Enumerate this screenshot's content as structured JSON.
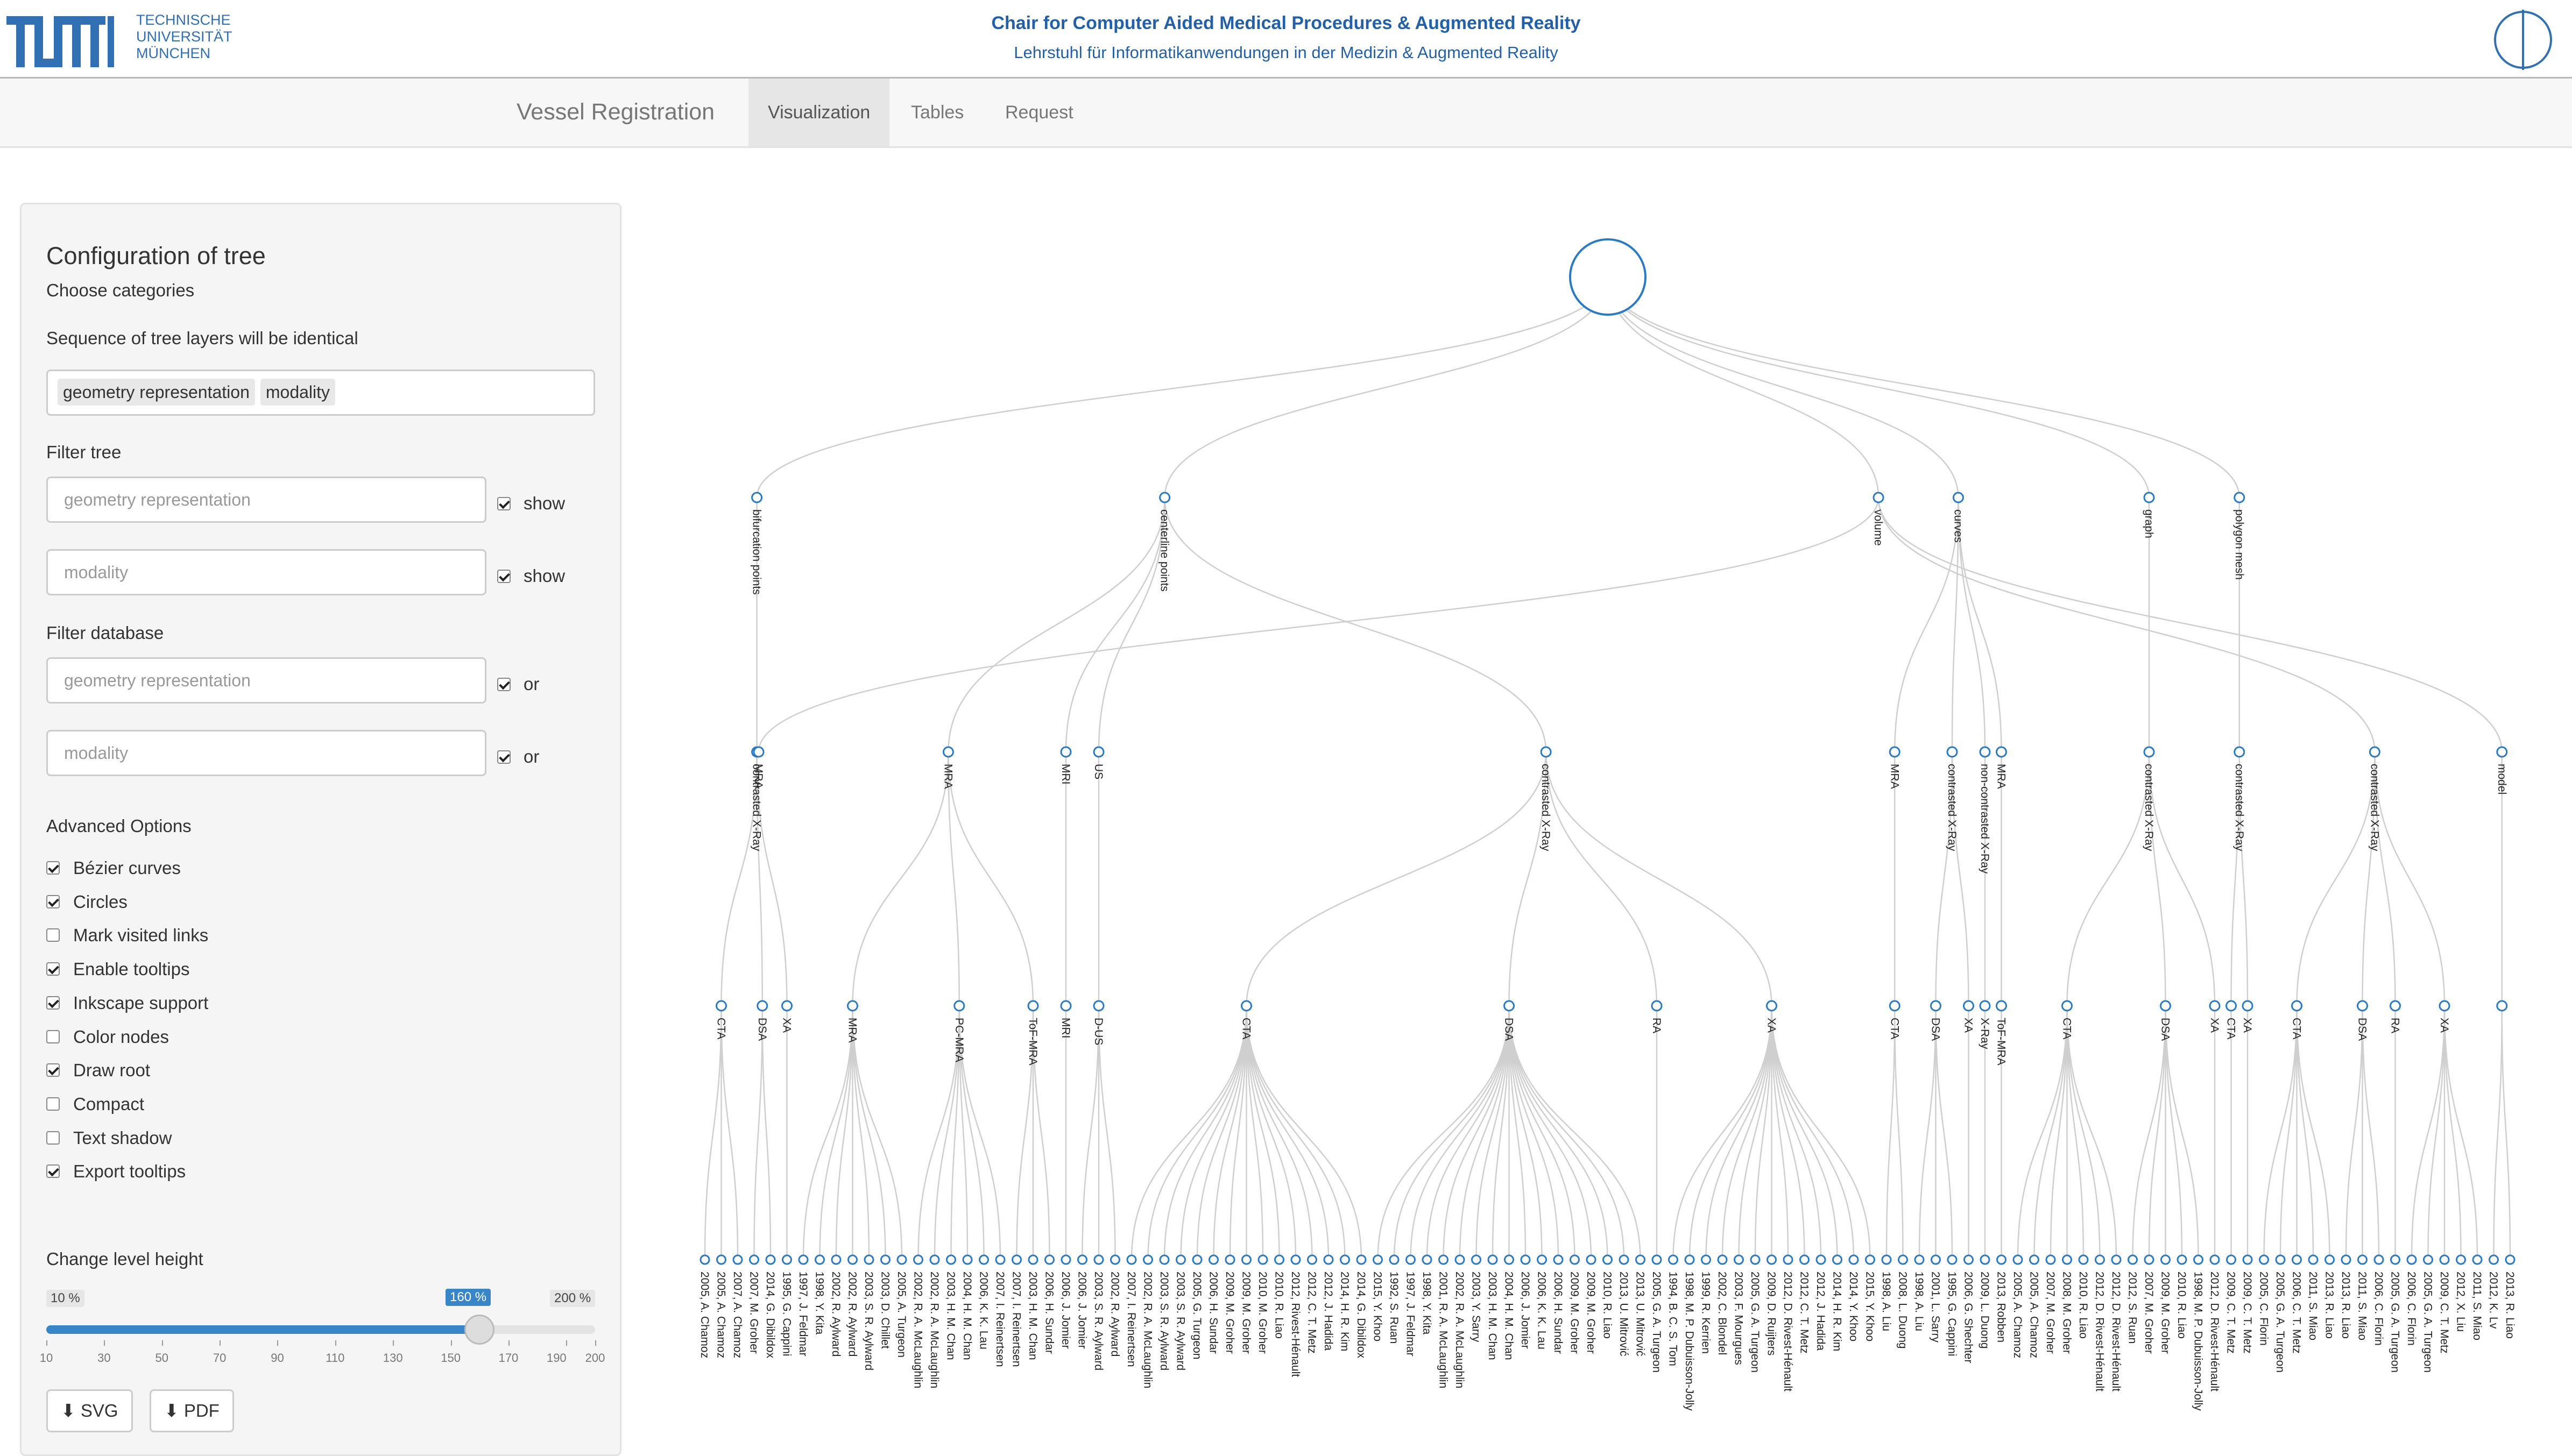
{
  "header": {
    "logo_text": "TUM",
    "university": [
      "TECHNISCHE",
      "UNIVERSITÄT",
      "MÜNCHEN"
    ],
    "chair_title": "Chair for Computer Aided Medical Procedures & Augmented Reality",
    "chair_subtitle": "Lehrstuhl für Informatikanwendungen in der Medizin & Augmented Reality"
  },
  "nav": {
    "brand": "Vessel Registration",
    "tabs": [
      {
        "label": "Visualization",
        "active": true
      },
      {
        "label": "Tables"
      },
      {
        "label": "Request"
      }
    ]
  },
  "panel": {
    "title": "Configuration of tree",
    "choose_label": "Choose categories",
    "sequence_label": "Sequence of tree layers will be identical",
    "selected_tags": [
      "geometry representation",
      "modality"
    ],
    "filter_tree_label": "Filter tree",
    "filter_tree": [
      {
        "placeholder": "geometry representation",
        "checked": true,
        "check_label": "show"
      },
      {
        "placeholder": "modality",
        "checked": true,
        "check_label": "show"
      }
    ],
    "filter_db_label": "Filter database",
    "filter_db": [
      {
        "placeholder": "geometry representation",
        "checked": true,
        "check_label": "or"
      },
      {
        "placeholder": "modality",
        "checked": true,
        "check_label": "or"
      }
    ],
    "advanced_label": "Advanced Options",
    "options": [
      {
        "label": "Bézier curves",
        "checked": true
      },
      {
        "label": "Circles",
        "checked": true
      },
      {
        "label": "Mark visited links",
        "checked": false
      },
      {
        "label": "Enable tooltips",
        "checked": true
      },
      {
        "label": "Inkscape support",
        "checked": true
      },
      {
        "label": "Color nodes",
        "checked": false
      },
      {
        "label": "Draw root",
        "checked": true
      },
      {
        "label": "Compact",
        "checked": false
      },
      {
        "label": "Text shadow",
        "checked": false
      },
      {
        "label": "Export tooltips",
        "checked": true
      }
    ],
    "level_height_label": "Change level height",
    "slider": {
      "min_label": "10 %",
      "max_label": "200 %",
      "value_label": "160 %",
      "min": 10,
      "max": 200,
      "value": 160,
      "ticks": [
        "10",
        "30",
        "50",
        "70",
        "90",
        "110",
        "130",
        "150",
        "170",
        "190",
        "200"
      ]
    },
    "buttons": {
      "svg": "SVG",
      "pdf": "PDF"
    }
  },
  "tree": {
    "children": [
      {
        "label": "bifurcation points",
        "children": [
          {
            "label": "contrasted X-Ray",
            "children": [
              {
                "label": "CTA",
                "leaves": [
                  "2005, A. Chamoz",
                  "2005, A. Chamoz",
                  "2007, A. Chamoz"
                ]
              },
              {
                "label": "DSA",
                "leaves": [
                  "2007, M. Groher",
                  "2014, G. Dibildox"
                ]
              },
              {
                "label": "XA",
                "leaves": [
                  "1995, G. Cappini"
                ]
              }
            ]
          }
        ]
      },
      {
        "label": "centerline points",
        "children": [
          {
            "label": "MRA",
            "children": [
              {
                "label": "MRA",
                "leaves": [
                  "1997, J. Feldmar",
                  "1998, Y. Kita",
                  "2002, R. Aylward",
                  "2002, R. Aylward",
                  "2003, S. R. Aylward",
                  "2003, D. Chillet",
                  "2005, A. Turgeon"
                ]
              },
              {
                "label": "PC-MRA",
                "leaves": [
                  "2002, R. A. McLaughlin",
                  "2002, R. A. McLaughlin",
                  "2003, H. M. Chan",
                  "2004, H. M. Chan",
                  "2006, K. K. Lau",
                  "2007, I. Reinertsen"
                ]
              },
              {
                "label": "ToF-MRA",
                "leaves": [
                  "2007, I. Reinertsen",
                  "2003, H. M. Chan",
                  "2006, H. Sundar"
                ]
              }
            ]
          },
          {
            "label": "MRI",
            "children": [
              {
                "label": "MRI",
                "leaves": [
                  "2006, J. Jomier"
                ]
              }
            ]
          },
          {
            "label": "US",
            "children": [
              {
                "label": "D-US",
                "leaves": [
                  "2006, J. Jomier",
                  "2003, S. R. Aylward",
                  "2002, R. Aylward"
                ]
              }
            ]
          },
          {
            "label": "contrasted X-Ray",
            "children": [
              {
                "label": "CTA",
                "leaves": [
                  "2007, I. Reinertsen",
                  "2002, R. A. McLaughlin",
                  "2003, S. R. Aylward",
                  "2003, S. R. Aylward",
                  "2005, G. Turgeon",
                  "2006, H. Sundar",
                  "2009, M. Groher",
                  "2009, M. Groher",
                  "2010, M. Groher",
                  "2010, R. Liao",
                  "2012, Rivest-Hénault",
                  "2012, C. T. Metz",
                  "2012, J. Hadida",
                  "2014, H. R. Kim",
                  "2014, G. Dibildox"
                ]
              },
              {
                "label": "DSA",
                "leaves": [
                  "2015, Y. Khoo",
                  "1992, S. Ruan",
                  "1997, J. Feldmar",
                  "1998, Y. Kita",
                  "2001, R. A. McLaughlin",
                  "2002, R. A. McLaughlin",
                  "2003, Y. Sarry",
                  "2003, H. M. Chan",
                  "2004, H. M. Chan",
                  "2006, J. Jomier",
                  "2006, K. K. Lau",
                  "2006, H. Sundar",
                  "2009, M. Groher",
                  "2009, M. Groher",
                  "2010, R. Liao",
                  "2013, U. Mitrović",
                  "2013, U. Mitrović"
                ]
              },
              {
                "label": "RA",
                "leaves": [
                  "2005, G. A. Turgeon"
                ]
              },
              {
                "label": "XA",
                "leaves": [
                  "1994, B. C. S. Tom",
                  "1998, M. P. Dubuisson-Jolly",
                  "1999, R. Kerrien",
                  "2002, C. Blondel",
                  "2003, F. Mourgues",
                  "2005, G. A. Turgeon",
                  "2009, D. Ruijters",
                  "2012, D. Rivest-Hénault",
                  "2012, C. T. Metz",
                  "2012, J. Hadida",
                  "2014, H. R. Kim",
                  "2014, Y. Khoo",
                  "2015, Y. Khoo"
                ]
              }
            ]
          }
        ]
      },
      {
        "label": "curves",
        "children": [
          {
            "label": "MRA",
            "children": [
              {
                "label": "CTA",
                "leaves": [
                  "1998, A. Liu",
                  "2008, L. Duong"
                ]
              }
            ]
          },
          {
            "label": "contrasted X-Ray",
            "children": [
              {
                "label": "DSA",
                "leaves": [
                  "1998, A. Liu",
                  "2001, L. Sarry",
                  "1995, G. Cappini"
                ]
              },
              {
                "label": "XA",
                "leaves": [
                  "2006, G. Shechter"
                ]
              }
            ]
          },
          {
            "label": "non-contrasted X-Ray",
            "children": [
              {
                "label": "X-Ray",
                "leaves": [
                  "2009, L. Duong"
                ]
              }
            ]
          },
          {
            "label": "MRA",
            "children": [
              {
                "label": "ToF-MRA",
                "leaves": [
                  "2013, Robben"
                ]
              }
            ]
          }
        ]
      },
      {
        "label": "graph",
        "children": [
          {
            "label": "contrasted X-Ray",
            "children": [
              {
                "label": "CTA",
                "leaves": [
                  "2005, A. Chamoz",
                  "2005, A. Chamoz",
                  "2007, M. Groher",
                  "2008, M. Groher",
                  "2010, R. Liao",
                  "2012, D. Rivest-Hénault",
                  "2012, D. Rivest-Hénault"
                ]
              },
              {
                "label": "DSA",
                "leaves": [
                  "2012, S. Ruan",
                  "2007, M. Groher",
                  "2009, M. Groher",
                  "2010, R. Liao",
                  "1998, M. P. Dubuisson-Jolly"
                ]
              },
              {
                "label": "XA",
                "leaves": [
                  "2012, D. Rivest-Hénault"
                ]
              }
            ]
          }
        ]
      },
      {
        "label": "polygon mesh",
        "children": [
          {
            "label": "contrasted X-Ray",
            "children": [
              {
                "label": "CTA",
                "leaves": [
                  "2009, C. T. Metz"
                ]
              },
              {
                "label": "XA",
                "leaves": [
                  "2009, C. T. Metz"
                ]
              }
            ]
          }
        ]
      },
      {
        "label": "volume",
        "children": [
          {
            "label": "MRA",
            "children": []
          },
          {
            "label": "contrasted X-Ray",
            "children": [
              {
                "label": "CTA",
                "leaves": [
                  "2005, C. Florin",
                  "2005, G. A. Turgeon",
                  "2006, C. T. Metz",
                  "2011, S. Miao",
                  "2013, R. Liao"
                ]
              },
              {
                "label": "DSA",
                "leaves": [
                  "2013, R. Liao",
                  "2011, S. Miao",
                  "2006, C. Florin"
                ]
              },
              {
                "label": "RA",
                "leaves": [
                  "2005, G. A. Turgeon"
                ]
              },
              {
                "label": "XA",
                "leaves": [
                  "2006, C. Florin",
                  "2005, G. A. Turgeon",
                  "2009, C. T. Metz",
                  "2012, X. Liu",
                  "2011, S. Miao"
                ]
              }
            ]
          },
          {
            "label": "model",
            "children": [
              {
                "label": "",
                "leaves": [
                  "2012, K. Lv",
                  "2013, R. Liao"
                ]
              }
            ]
          }
        ]
      }
    ]
  },
  "colors": {
    "accent": "#3886c8",
    "tum_blue": "#3070b3",
    "node_stroke": "#2a7bc4",
    "link": "#cfcfcf"
  }
}
